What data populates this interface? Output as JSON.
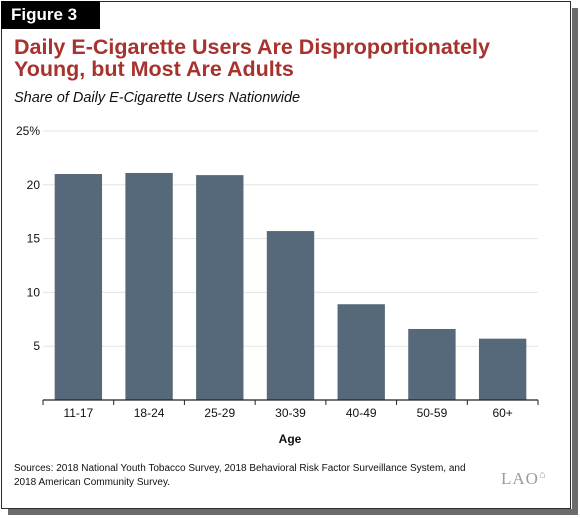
{
  "figure_label": "Figure 3",
  "title": "Daily E-Cigarette Users Are Disproportionately Young, but Most Are Adults",
  "subtitle": "Share of Daily E-Cigarette Users Nationwide",
  "sources": "Sources: 2018 National Youth Tobacco Survey, 2018 Behavioral Risk Factor Surveillance System, and 2018 American Community Survey.",
  "logo_text": "LAO",
  "colors": {
    "bar": "#56697a",
    "title": "#a8322d",
    "grid": "#e3e3e3",
    "axis": "#222222"
  },
  "chart_data": {
    "type": "bar",
    "categories": [
      "11-17",
      "18-24",
      "25-29",
      "30-39",
      "40-49",
      "50-59",
      "60+"
    ],
    "values": [
      21.0,
      21.1,
      20.9,
      15.7,
      8.9,
      6.6,
      5.7
    ],
    "title": "",
    "xlabel": "Age",
    "ylabel": "",
    "ylim": [
      0,
      25
    ],
    "yticks": [
      5,
      10,
      15,
      20,
      25
    ],
    "ytick_labels": [
      "5",
      "10",
      "15",
      "20",
      "25%"
    ],
    "grid": true,
    "legend": "none"
  }
}
